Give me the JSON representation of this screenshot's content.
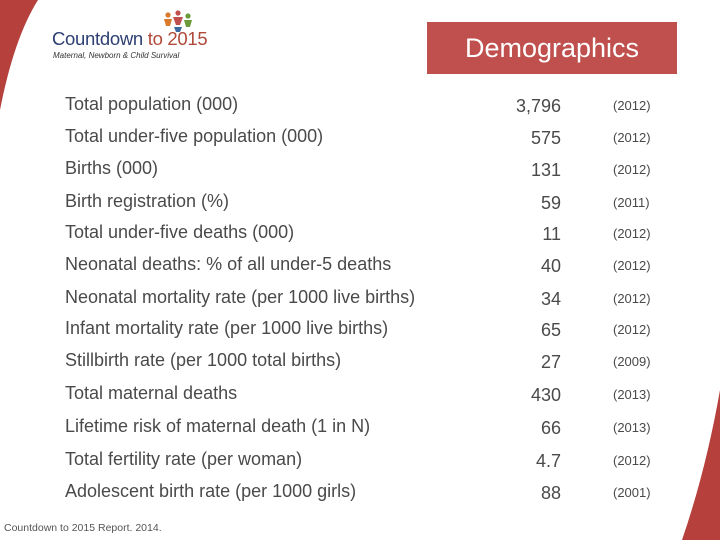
{
  "logo": {
    "title_main": "Countdown",
    "title_accent": "to 2015",
    "subtitle": "Maternal, Newborn & Child Survival"
  },
  "banner": {
    "title": "Demographics"
  },
  "colors": {
    "banner": "#c0504d",
    "corner": "#b5403c",
    "logo_navy": "#2d3f73"
  },
  "rows": [
    {
      "label": "Total population (000)",
      "value": "3,796",
      "year": "(2012)"
    },
    {
      "label": "Total under-five population (000)",
      "value": "575",
      "year": "(2012)"
    },
    {
      "label": "Births (000)",
      "value": "131",
      "year": "(2012)"
    },
    {
      "label": "Birth registration (%)",
      "value": "59",
      "year": "(2011)"
    },
    {
      "label": "Total under-five deaths (000)",
      "value": "11",
      "year": "(2012)"
    },
    {
      "label": "Neonatal deaths: % of all under-5 deaths",
      "value": "40",
      "year": "(2012)"
    },
    {
      "label": "Neonatal mortality rate (per 1000 live births)",
      "value": "34",
      "year": "(2012)"
    },
    {
      "label": "Infant mortality rate (per 1000 live births)",
      "value": "65",
      "year": "(2012)"
    },
    {
      "label": "Stillbirth rate (per 1000 total births)",
      "value": "27",
      "year": "(2009)"
    },
    {
      "label": "Total maternal deaths",
      "value": "430",
      "year": "(2013)"
    },
    {
      "label": "Lifetime risk of maternal death (1 in N)",
      "value": "66",
      "year": "(2013)"
    },
    {
      "label": "Total fertility rate (per woman)",
      "value": "4.7",
      "year": "(2012)"
    },
    {
      "label": "Adolescent birth rate (per 1000 girls)",
      "value": "88",
      "year": "(2001)"
    }
  ],
  "source": "Countdown to 2015 Report. 2014."
}
